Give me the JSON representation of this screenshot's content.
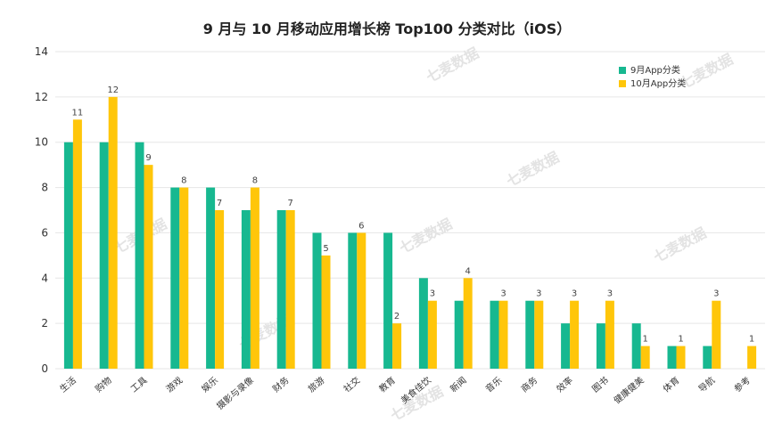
{
  "chart_data": {
    "type": "bar",
    "title": "9 月与 10 月移动应用增长榜 Top100 分类对比（iOS）",
    "watermark": "七麦数据",
    "categories": [
      "生活",
      "购物",
      "工具",
      "游戏",
      "娱乐",
      "摄影与录像",
      "财务",
      "旅游",
      "社交",
      "教育",
      "美食佳饮",
      "新闻",
      "音乐",
      "商务",
      "效率",
      "图书",
      "健康健美",
      "体育",
      "导航",
      "参考"
    ],
    "series": [
      {
        "name": "9月App分类",
        "color": "#17b890",
        "values": [
          10,
          10,
          10,
          8,
          8,
          7,
          7,
          6,
          6,
          6,
          4,
          3,
          3,
          3,
          2,
          2,
          2,
          1,
          1,
          0
        ]
      },
      {
        "name": "10月App分类",
        "color": "#ffc60a",
        "values": [
          11,
          12,
          9,
          8,
          7,
          8,
          7,
          5,
          6,
          2,
          3,
          4,
          3,
          3,
          3,
          3,
          1,
          1,
          3,
          1
        ]
      }
    ],
    "data_labels": [
      "11",
      "12",
      "9",
      "8",
      "7",
      "8",
      "7",
      "5",
      "6",
      "2",
      "3",
      "4",
      "3",
      "3",
      "3",
      "3",
      "1",
      "1",
      "3",
      "1"
    ],
    "y_ticks": [
      "0",
      "2",
      "4",
      "6",
      "8",
      "10",
      "12",
      "14"
    ],
    "ylim": [
      0,
      14
    ],
    "grid": true,
    "legend_position": "top-right"
  }
}
